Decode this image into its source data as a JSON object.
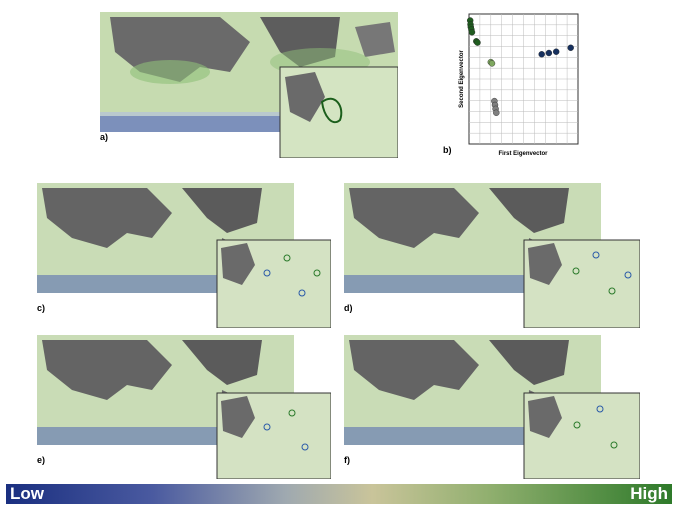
{
  "panels": [
    {
      "id": "a",
      "label": "a)"
    },
    {
      "id": "b",
      "label": "b)"
    },
    {
      "id": "c",
      "label": "c)"
    },
    {
      "id": "d",
      "label": "d)"
    },
    {
      "id": "e",
      "label": "e)"
    },
    {
      "id": "f",
      "label": "f)"
    }
  ],
  "chart_data": {
    "type": "scatter",
    "xlabel": "First Eigenvector",
    "ylabel": "Second Eigenvector",
    "grid": true,
    "series": [
      {
        "color": "#1f5c1f",
        "points": [
          [
            0.1,
            0.95
          ],
          [
            0.12,
            0.92
          ],
          [
            0.15,
            0.9
          ],
          [
            0.2,
            0.88
          ],
          [
            0.25,
            0.86
          ],
          [
            0.6,
            0.79
          ],
          [
            0.7,
            0.78
          ]
        ]
      },
      {
        "color": "#7fa860",
        "points": [
          [
            1.8,
            0.63
          ],
          [
            1.9,
            0.62
          ]
        ]
      },
      {
        "color": "#16305e",
        "points": [
          [
            6.0,
            0.69
          ],
          [
            6.6,
            0.7
          ],
          [
            7.2,
            0.71
          ],
          [
            8.4,
            0.74
          ]
        ]
      },
      {
        "color": "#808080",
        "points": [
          [
            2.1,
            0.33
          ],
          [
            2.15,
            0.3
          ],
          [
            2.2,
            0.27
          ],
          [
            2.25,
            0.24
          ]
        ]
      }
    ]
  },
  "colorbar": {
    "low_label": "Low",
    "high_label": "High",
    "stops": [
      "#1a2f80",
      "#9fa9b0",
      "#c9c49a",
      "#2e7a2a"
    ]
  }
}
